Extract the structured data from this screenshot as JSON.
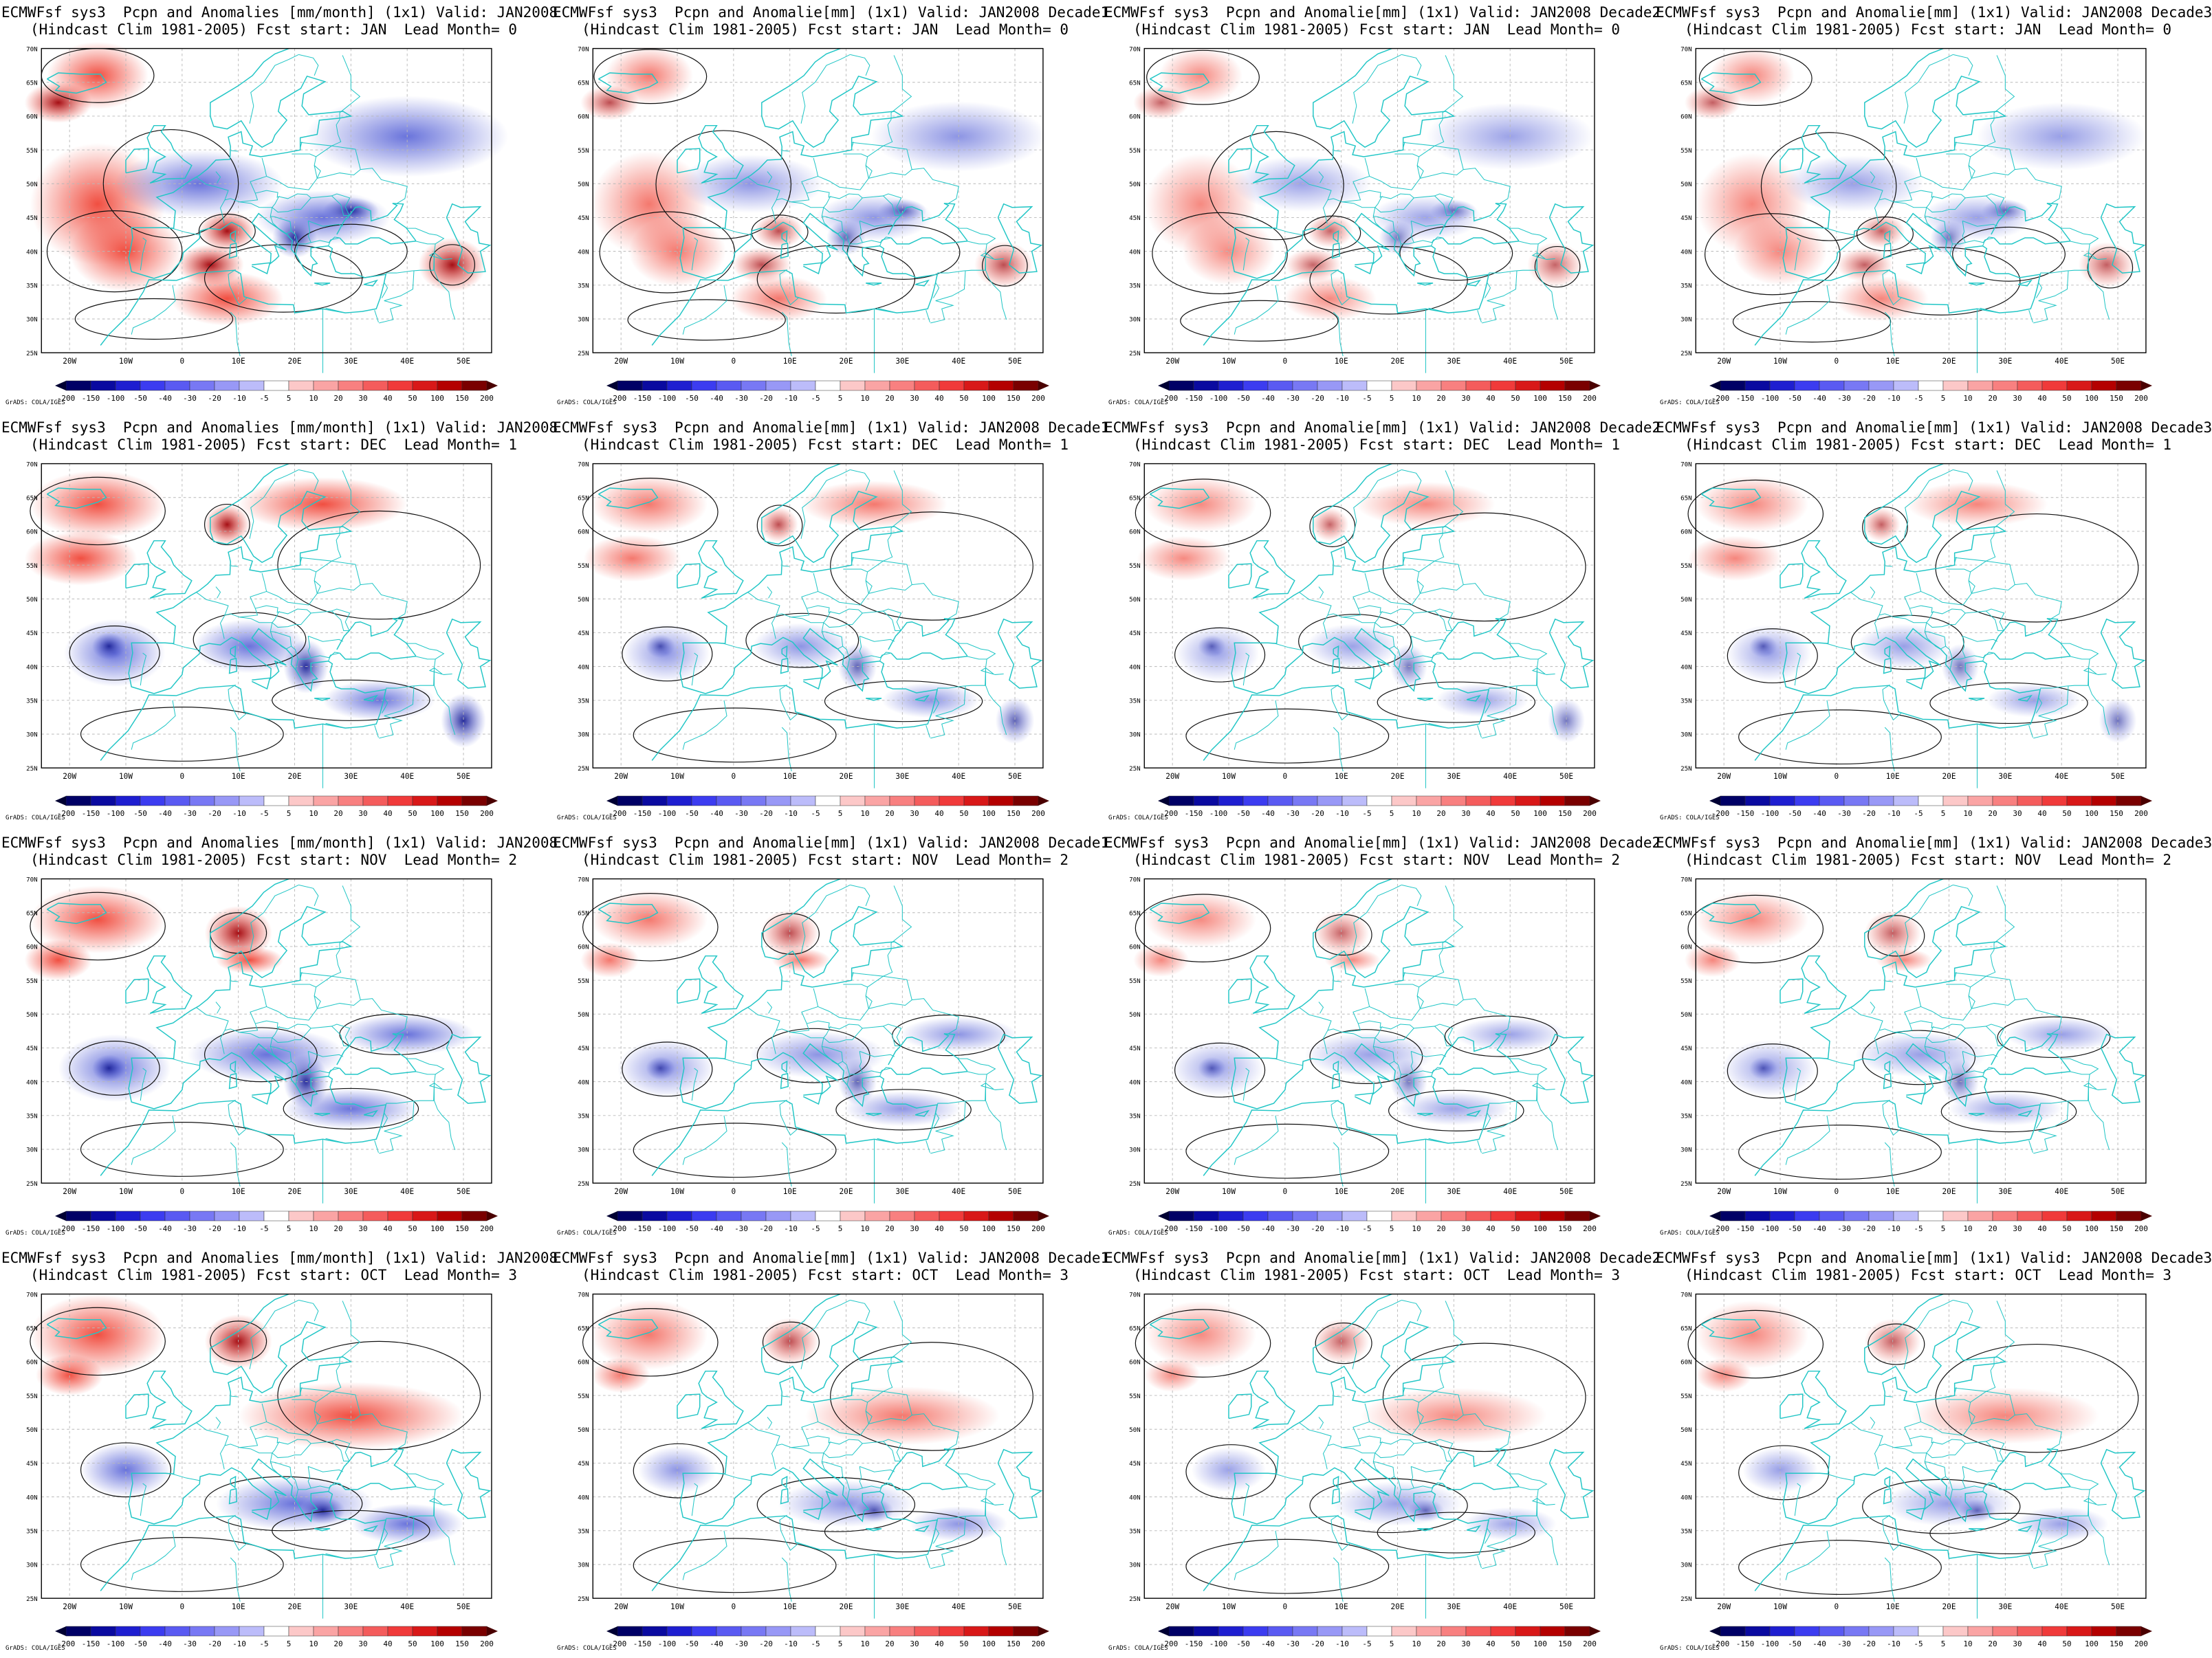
{
  "colors": {
    "coast": "#22c6c6",
    "contour": "#111111",
    "grid": "#b8b8b8",
    "wet": "#ef3b2c",
    "dry": "#4f5bd5"
  },
  "axes": {
    "lon_labels": [
      "20W",
      "10W",
      "0",
      "10E",
      "20E",
      "30E",
      "40E",
      "50E"
    ],
    "lat_labels": [
      "70N",
      "65N",
      "60N",
      "55N",
      "50N",
      "45N",
      "40N",
      "35N",
      "30N",
      "25N"
    ]
  },
  "colorbar": {
    "credit": "GrADS: COLA/IGES",
    "levels": [
      "-200",
      "-150",
      "-100",
      "-50",
      "-40",
      "-30",
      "-20",
      "-10",
      "-5",
      "5",
      "10",
      "20",
      "30",
      "40",
      "50",
      "100",
      "150",
      "200"
    ]
  },
  "panels": [
    {
      "line1": "ECMWFsf sys3  Pcpn and Anomalies [mm/month] (1x1) Valid: JAN2008",
      "line2": "(Hindcast Clim 1981-2005) Fcst start: JAN  Lead Month= 0"
    },
    {
      "line1": "ECMWFsf sys3  Pcpn and Anomalie[mm] (1x1) Valid: JAN2008 Decade1",
      "line2": "(Hindcast Clim 1981-2005) Fcst start: JAN  Lead Month= 0"
    },
    {
      "line1": "ECMWFsf sys3  Pcpn and Anomalie[mm] (1x1) Valid: JAN2008 Decade2",
      "line2": "(Hindcast Clim 1981-2005) Fcst start: JAN  Lead Month= 0"
    },
    {
      "line1": "ECMWFsf sys3  Pcpn and Anomalie[mm] (1x1) Valid: JAN2008 Decade3",
      "line2": "(Hindcast Clim 1981-2005) Fcst start: JAN  Lead Month= 0"
    },
    {
      "line1": "ECMWFsf sys3  Pcpn and Anomalies [mm/month] (1x1) Valid: JAN2008",
      "line2": "(Hindcast Clim 1981-2005) Fcst start: DEC  Lead Month= 1"
    },
    {
      "line1": "ECMWFsf sys3  Pcpn and Anomalie[mm] (1x1) Valid: JAN2008 Decade1",
      "line2": "(Hindcast Clim 1981-2005) Fcst start: DEC  Lead Month= 1"
    },
    {
      "line1": "ECMWFsf sys3  Pcpn and Anomalie[mm] (1x1) Valid: JAN2008 Decade2",
      "line2": "(Hindcast Clim 1981-2005) Fcst start: DEC  Lead Month= 1"
    },
    {
      "line1": "ECMWFsf sys3  Pcpn and Anomalie[mm] (1x1) Valid: JAN2008 Decade3",
      "line2": "(Hindcast Clim 1981-2005) Fcst start: DEC  Lead Month= 1"
    },
    {
      "line1": "ECMWFsf sys3  Pcpn and Anomalies [mm/month] (1x1) Valid: JAN2008",
      "line2": "(Hindcast Clim 1981-2005) Fcst start: NOV  Lead Month= 2"
    },
    {
      "line1": "ECMWFsf sys3  Pcpn and Anomalie[mm] (1x1) Valid: JAN2008 Decade1",
      "line2": "(Hindcast Clim 1981-2005) Fcst start: NOV  Lead Month= 2"
    },
    {
      "line1": "ECMWFsf sys3  Pcpn and Anomalie[mm] (1x1) Valid: JAN2008 Decade2",
      "line2": "(Hindcast Clim 1981-2005) Fcst start: NOV  Lead Month= 2"
    },
    {
      "line1": "ECMWFsf sys3  Pcpn and Anomalie[mm] (1x1) Valid: JAN2008 Decade3",
      "line2": "(Hindcast Clim 1981-2005) Fcst start: NOV  Lead Month= 2"
    },
    {
      "line1": "ECMWFsf sys3  Pcpn and Anomalies [mm/month] (1x1) Valid: JAN2008",
      "line2": "(Hindcast Clim 1981-2005) Fcst start: OCT  Lead Month= 3"
    },
    {
      "line1": "ECMWFsf sys3  Pcpn and Anomalie[mm] (1x1) Valid: JAN2008 Decade1",
      "line2": "(Hindcast Clim 1981-2005) Fcst start: OCT  Lead Month= 3"
    },
    {
      "line1": "ECMWFsf sys3  Pcpn and Anomalie[mm] (1x1) Valid: JAN2008 Decade2",
      "line2": "(Hindcast Clim 1981-2005) Fcst start: OCT  Lead Month= 3"
    },
    {
      "line1": "ECMWFsf sys3  Pcpn and Anomalie[mm] (1x1) Valid: JAN2008 Decade3",
      "line2": "(Hindcast Clim 1981-2005) Fcst start: OCT  Lead Month= 3"
    }
  ]
}
